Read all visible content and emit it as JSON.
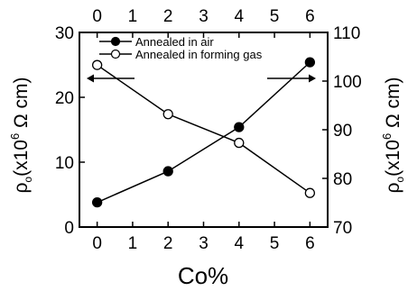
{
  "chart_data": {
    "type": "line",
    "xlabel": "Co%",
    "x_top_ticks": [
      "0",
      "1",
      "2",
      "3",
      "4",
      "5",
      "6"
    ],
    "x_bottom_ticks": [
      "0",
      "1",
      "2",
      "3",
      "4",
      "5",
      "6"
    ],
    "xlim": [
      -0.5,
      6.5
    ],
    "y_left": {
      "label_prefix": "ρ",
      "label_subscript": "o",
      "label_main": "(x10",
      "label_superscript": "6",
      "label_unit": " Ω cm)",
      "ticks": [
        "0",
        "10",
        "20",
        "30"
      ],
      "tick_values": [
        0,
        10,
        20,
        30
      ],
      "ylim": [
        0,
        30
      ]
    },
    "y_right": {
      "label_prefix": "ρ",
      "label_subscript": "o",
      "label_main": "(x10",
      "label_superscript": "6",
      "label_unit": " Ω cm)",
      "ticks": [
        "70",
        "80",
        "90",
        "100",
        "110"
      ],
      "tick_values": [
        70,
        80,
        90,
        100,
        110
      ],
      "ylim": [
        70,
        110
      ]
    },
    "series": [
      {
        "name": "Annealed in air",
        "axis": "left",
        "marker": "filled-circle",
        "x": [
          0,
          2,
          4,
          6
        ],
        "values": [
          3.8,
          8.6,
          15.4,
          25.4
        ]
      },
      {
        "name": "Annealed in forming gas",
        "axis": "right",
        "marker": "open-circle",
        "x": [
          0,
          2,
          4,
          6
        ],
        "values": [
          103.3,
          93.2,
          87.3,
          77.0
        ]
      }
    ],
    "arrows": [
      {
        "direction": "left",
        "meaning": "left axis"
      },
      {
        "direction": "right",
        "meaning": "right axis"
      }
    ],
    "legend_placement": "top",
    "grid": false
  },
  "colors": {
    "line": "#000000",
    "background": "#ffffff"
  }
}
